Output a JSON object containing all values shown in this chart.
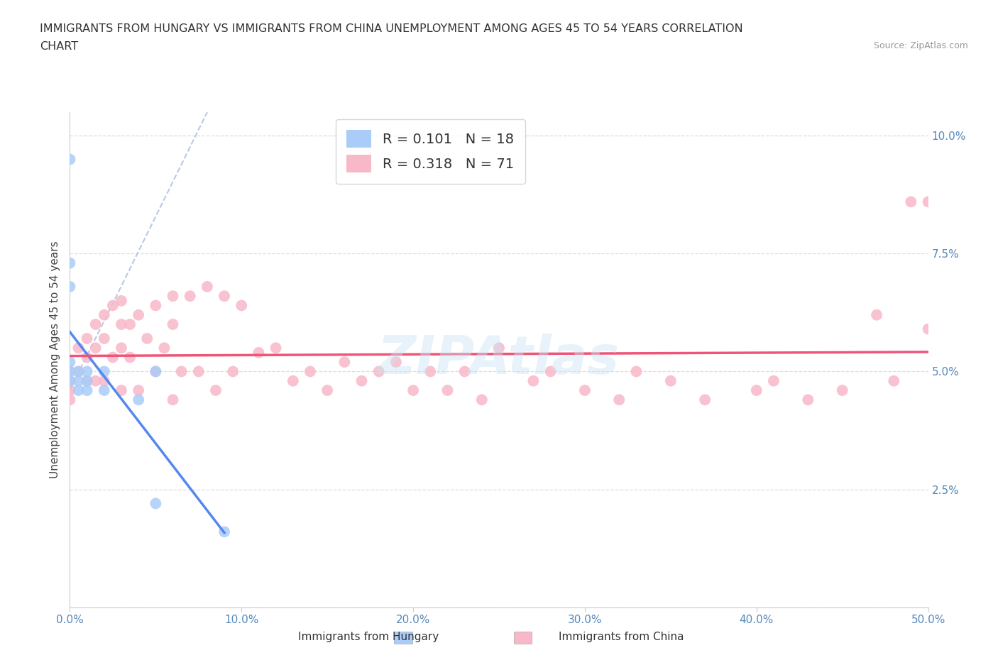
{
  "title_line1": "IMMIGRANTS FROM HUNGARY VS IMMIGRANTS FROM CHINA UNEMPLOYMENT AMONG AGES 45 TO 54 YEARS CORRELATION",
  "title_line2": "CHART",
  "source": "Source: ZipAtlas.com",
  "ylabel": "Unemployment Among Ages 45 to 54 years",
  "xaxis_label_hungary": "Immigrants from Hungary",
  "xaxis_label_china": "Immigrants from China",
  "xlim": [
    0.0,
    0.5
  ],
  "ylim": [
    0.0,
    0.105
  ],
  "xticks": [
    0.0,
    0.1,
    0.2,
    0.3,
    0.4,
    0.5
  ],
  "xtick_labels": [
    "0.0%",
    "10.0%",
    "20.0%",
    "30.0%",
    "40.0%",
    "50.0%"
  ],
  "yticks": [
    0.0,
    0.025,
    0.05,
    0.075,
    0.1
  ],
  "ytick_labels": [
    "",
    "2.5%",
    "5.0%",
    "7.5%",
    "10.0%"
  ],
  "hungary_R": 0.101,
  "hungary_N": 18,
  "china_R": 0.318,
  "china_N": 71,
  "hungary_color": "#aaccf8",
  "china_color": "#f8b8c8",
  "hungary_line_color": "#5588ee",
  "china_line_color": "#ee5577",
  "tick_color": "#5588bb",
  "hungary_x": [
    0.0,
    0.0,
    0.0,
    0.0,
    0.0,
    0.0,
    0.005,
    0.005,
    0.005,
    0.01,
    0.01,
    0.01,
    0.02,
    0.02,
    0.04,
    0.05,
    0.05,
    0.09
  ],
  "hungary_y": [
    0.095,
    0.073,
    0.068,
    0.052,
    0.05,
    0.048,
    0.05,
    0.048,
    0.046,
    0.05,
    0.048,
    0.046,
    0.05,
    0.046,
    0.044,
    0.05,
    0.022,
    0.016
  ],
  "china_x": [
    0.0,
    0.0,
    0.0,
    0.0,
    0.005,
    0.005,
    0.01,
    0.01,
    0.01,
    0.015,
    0.015,
    0.015,
    0.02,
    0.02,
    0.02,
    0.025,
    0.025,
    0.03,
    0.03,
    0.03,
    0.03,
    0.035,
    0.035,
    0.04,
    0.04,
    0.045,
    0.05,
    0.05,
    0.055,
    0.06,
    0.06,
    0.06,
    0.065,
    0.07,
    0.075,
    0.08,
    0.085,
    0.09,
    0.095,
    0.1,
    0.11,
    0.12,
    0.13,
    0.14,
    0.15,
    0.16,
    0.17,
    0.18,
    0.19,
    0.2,
    0.21,
    0.22,
    0.23,
    0.24,
    0.25,
    0.27,
    0.28,
    0.3,
    0.32,
    0.33,
    0.35,
    0.37,
    0.4,
    0.41,
    0.43,
    0.45,
    0.47,
    0.48,
    0.49,
    0.5,
    0.5
  ],
  "china_y": [
    0.05,
    0.048,
    0.046,
    0.044,
    0.055,
    0.05,
    0.057,
    0.053,
    0.048,
    0.06,
    0.055,
    0.048,
    0.062,
    0.057,
    0.048,
    0.064,
    0.053,
    0.065,
    0.06,
    0.055,
    0.046,
    0.06,
    0.053,
    0.062,
    0.046,
    0.057,
    0.064,
    0.05,
    0.055,
    0.066,
    0.06,
    0.044,
    0.05,
    0.066,
    0.05,
    0.068,
    0.046,
    0.066,
    0.05,
    0.064,
    0.054,
    0.055,
    0.048,
    0.05,
    0.046,
    0.052,
    0.048,
    0.05,
    0.052,
    0.046,
    0.05,
    0.046,
    0.05,
    0.044,
    0.055,
    0.048,
    0.05,
    0.046,
    0.044,
    0.05,
    0.048,
    0.044,
    0.046,
    0.048,
    0.044,
    0.046,
    0.062,
    0.048,
    0.086,
    0.059,
    0.086
  ]
}
